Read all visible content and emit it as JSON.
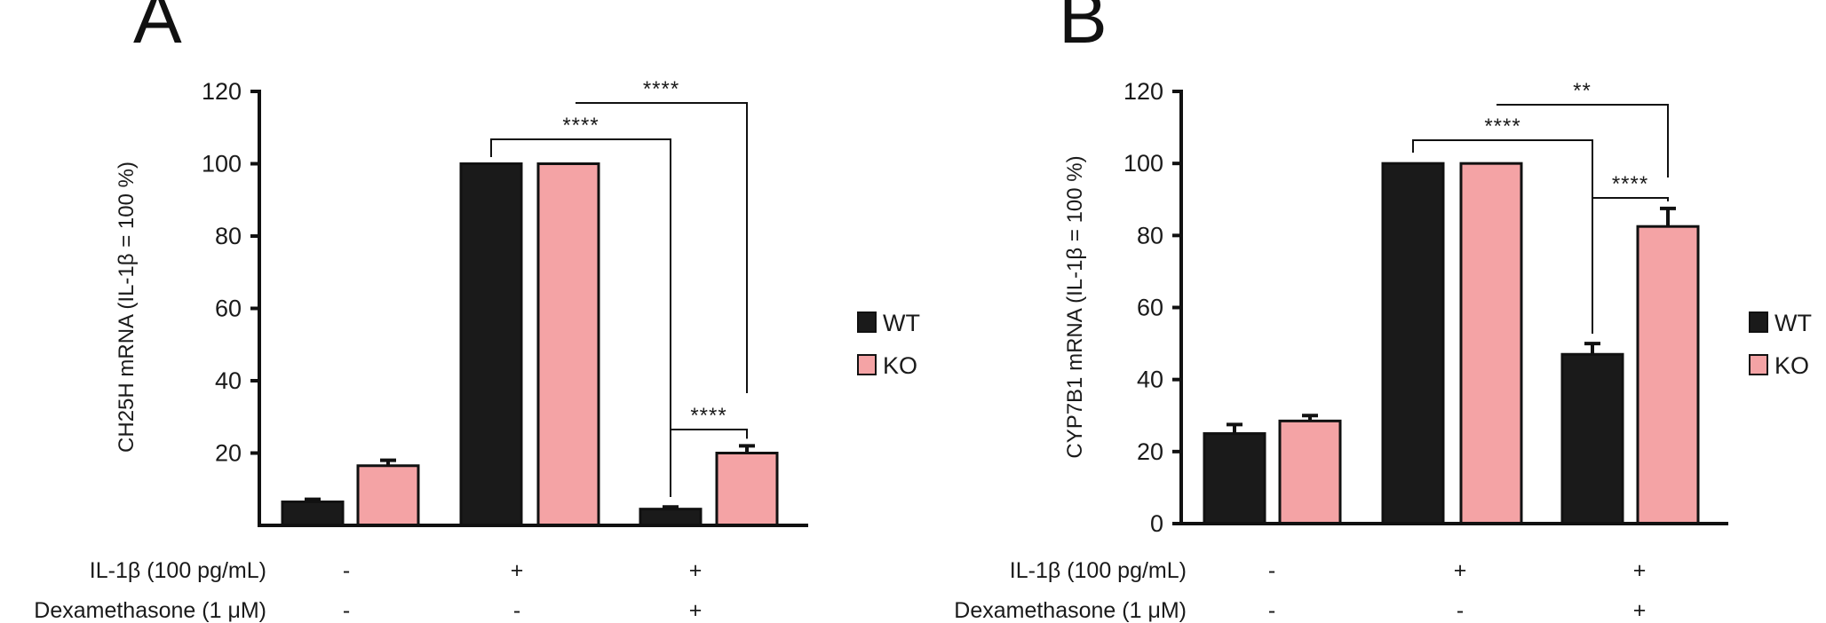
{
  "colors": {
    "WT": "#1a1a1a",
    "KO": "#f4a3a5",
    "axis": "#111111"
  },
  "chart_data": [
    {
      "type": "bar",
      "panel_label": "A",
      "ylabel": "CH25H mRNA (IL-1β = 100 %)",
      "ylim": [
        0,
        120
      ],
      "yticks": [
        "20",
        "40",
        "60",
        "80",
        "100",
        "120"
      ],
      "legend": {
        "position": "right",
        "entries": [
          "WT",
          "KO"
        ]
      },
      "conditions": [
        {
          "label": "IL-1β (100 pg/mL)",
          "values": [
            "-",
            "+",
            "+"
          ]
        },
        {
          "label": "Dexamethasone (1 μM)",
          "values": [
            "-",
            "-",
            "+"
          ]
        }
      ],
      "series": [
        {
          "name": "WT",
          "values": [
            6.5,
            100,
            4.5
          ],
          "errors": [
            0.7,
            0.2,
            0.6
          ]
        },
        {
          "name": "KO",
          "values": [
            16.5,
            100,
            20
          ],
          "errors": [
            1.5,
            0.2,
            2
          ]
        }
      ],
      "significance": [
        {
          "text": "****",
          "from": "WT-2",
          "to": "WT-3"
        },
        {
          "text": "****",
          "from": "KO-2",
          "to": "KO-3"
        },
        {
          "text": "****",
          "from": "WT-3",
          "to": "KO-3"
        }
      ]
    },
    {
      "type": "bar",
      "panel_label": "B",
      "ylabel": "CYP7B1 mRNA (IL-1β = 100 %)",
      "ylim": [
        0,
        120
      ],
      "yticks": [
        "0",
        "20",
        "40",
        "60",
        "80",
        "100",
        "120"
      ],
      "legend": {
        "position": "right",
        "entries": [
          "WT",
          "KO"
        ]
      },
      "conditions": [
        {
          "label": "IL-1β (100 pg/mL)",
          "values": [
            "-",
            "+",
            "+"
          ]
        },
        {
          "label": "Dexamethasone (1 μM)",
          "values": [
            "-",
            "-",
            "+"
          ]
        }
      ],
      "series": [
        {
          "name": "WT",
          "values": [
            25,
            100,
            47
          ],
          "errors": [
            2.5,
            0.2,
            3
          ]
        },
        {
          "name": "KO",
          "values": [
            28.5,
            100,
            82.5
          ],
          "errors": [
            1.5,
            0.2,
            5
          ]
        }
      ],
      "significance": [
        {
          "text": "****",
          "from": "WT-2",
          "to": "WT-3"
        },
        {
          "text": "**",
          "from": "KO-2",
          "to": "KO-3"
        },
        {
          "text": "****",
          "from": "WT-3",
          "to": "KO-3"
        }
      ]
    }
  ]
}
